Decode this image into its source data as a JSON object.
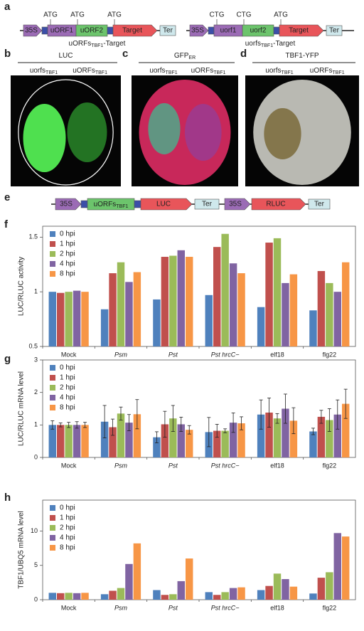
{
  "panels": [
    "a",
    "b",
    "c",
    "d",
    "e",
    "f",
    "g",
    "h"
  ],
  "constructs": [
    {
      "parts": [
        "35S",
        "uORF1",
        "uORF2",
        "Target",
        "Ter"
      ],
      "codons": [
        "ATG",
        "ATG",
        "ATG"
      ],
      "caption": {
        "main": "uORFs",
        "sub": "TBF1",
        "tail": "-Target"
      }
    },
    {
      "parts": [
        "35S",
        "uorf1",
        "uorf2",
        "Target",
        "Ter"
      ],
      "codons": [
        "CTG",
        "CTG",
        "ATG"
      ],
      "caption": {
        "main": "uorfs",
        "sub": "TBF1",
        "tail": "-Target"
      }
    }
  ],
  "reporter": {
    "parts": [
      "35S",
      {
        "main": "uORFs",
        "sub": "TBF1"
      },
      "LUC",
      "Ter",
      "35S",
      "RLUC",
      "Ter"
    ]
  },
  "images": [
    {
      "title": {
        "main": "LUC",
        "sub": ""
      },
      "columns": [
        {
          "main": "uorfs",
          "sub": "TBF1"
        },
        {
          "main": "uORFs",
          "sub": "TBF1"
        }
      ]
    },
    {
      "title": {
        "main": "GFP",
        "sub": "ER"
      },
      "columns": [
        {
          "main": "uorfs",
          "sub": "TBF1"
        },
        {
          "main": "uORFs",
          "sub": "TBF1"
        }
      ]
    },
    {
      "title": {
        "main": "TBF1-YFP",
        "sub": ""
      },
      "columns": [
        {
          "main": "uorfs",
          "sub": "TBF1"
        },
        {
          "main": "uORFs",
          "sub": "TBF1"
        }
      ]
    }
  ],
  "chart_data": [
    {
      "type": "bar",
      "y_label": "LUC/RLUC activity",
      "categories": [
        "Mock",
        "Psm",
        "Pst",
        "Pst hrcC−",
        "elf18",
        "flg22"
      ],
      "ylim": [
        0.5,
        1.6
      ],
      "yticks": [
        0.5,
        1,
        1.5
      ],
      "series": [
        {
          "name": "0 hpi",
          "color": "#4f81bd",
          "values": [
            1.0,
            0.84,
            0.93,
            0.97,
            0.86,
            0.83
          ]
        },
        {
          "name": "1 hpi",
          "color": "#c0504d",
          "values": [
            0.99,
            1.17,
            1.32,
            1.41,
            1.45,
            1.19
          ]
        },
        {
          "name": "2 hpi",
          "color": "#9bbb59",
          "values": [
            1.0,
            1.27,
            1.33,
            1.53,
            1.49,
            1.08
          ]
        },
        {
          "name": "4 hpi",
          "color": "#8064a2",
          "values": [
            1.01,
            1.09,
            1.38,
            1.26,
            1.08,
            1.0
          ]
        },
        {
          "name": "8 hpi",
          "color": "#f79646",
          "values": [
            1.0,
            1.18,
            1.32,
            1.17,
            1.16,
            1.27
          ]
        }
      ]
    },
    {
      "type": "bar",
      "y_label": "LUC/RLUC mRNA level",
      "categories": [
        "Mock",
        "Psm",
        "Pst",
        "Pst hrcC−",
        "elf18",
        "flg22"
      ],
      "ylim": [
        0,
        3
      ],
      "yticks": [
        0,
        1,
        2,
        3
      ],
      "series": [
        {
          "name": "0 hpi",
          "color": "#4f81bd",
          "values": [
            1.0,
            1.1,
            0.62,
            0.78,
            1.32,
            0.8
          ],
          "errors": [
            0.13,
            0.5,
            0.17,
            0.45,
            0.45,
            0.1
          ]
        },
        {
          "name": "1 hpi",
          "color": "#c0504d",
          "values": [
            1.0,
            0.93,
            1.02,
            0.82,
            1.38,
            1.25
          ],
          "errors": [
            0.06,
            0.25,
            0.4,
            0.2,
            0.45,
            0.2
          ]
        },
        {
          "name": "2 hpi",
          "color": "#9bbb59",
          "values": [
            1.0,
            1.35,
            1.2,
            0.82,
            1.2,
            1.15
          ],
          "errors": [
            0.08,
            0.2,
            0.4,
            0.06,
            0.15,
            0.35
          ]
        },
        {
          "name": "4 hpi",
          "color": "#8064a2",
          "values": [
            1.0,
            1.07,
            1.02,
            1.07,
            1.5,
            1.32
          ],
          "errors": [
            0.1,
            0.25,
            0.22,
            0.3,
            0.45,
            0.45
          ]
        },
        {
          "name": "8 hpi",
          "color": "#f79646",
          "values": [
            1.0,
            1.33,
            0.85,
            1.05,
            1.13,
            1.65
          ],
          "errors": [
            0.08,
            0.45,
            0.13,
            0.2,
            0.4,
            0.45
          ]
        }
      ]
    },
    {
      "type": "bar",
      "y_label": "TBF1/UBQ5 mRNA level",
      "categories": [
        "Mock",
        "Psm",
        "Pst",
        "Pst hrcC−",
        "elf18",
        "flg22"
      ],
      "ylim": [
        0,
        14.5
      ],
      "yticks": [
        0,
        5,
        10
      ],
      "series": [
        {
          "name": "0 hpi",
          "color": "#4f81bd",
          "values": [
            1.0,
            0.8,
            1.4,
            1.1,
            1.4,
            0.9
          ]
        },
        {
          "name": "1 hpi",
          "color": "#c0504d",
          "values": [
            0.95,
            1.3,
            0.7,
            0.7,
            2.0,
            3.2
          ]
        },
        {
          "name": "2 hpi",
          "color": "#9bbb59",
          "values": [
            1.0,
            1.7,
            0.8,
            1.1,
            3.8,
            4.0
          ]
        },
        {
          "name": "4 hpi",
          "color": "#8064a2",
          "values": [
            0.95,
            5.2,
            2.7,
            1.7,
            3.0,
            9.7
          ]
        },
        {
          "name": "8 hpi",
          "color": "#f79646",
          "values": [
            1.0,
            8.2,
            6.0,
            1.8,
            1.9,
            9.2
          ]
        }
      ]
    }
  ]
}
